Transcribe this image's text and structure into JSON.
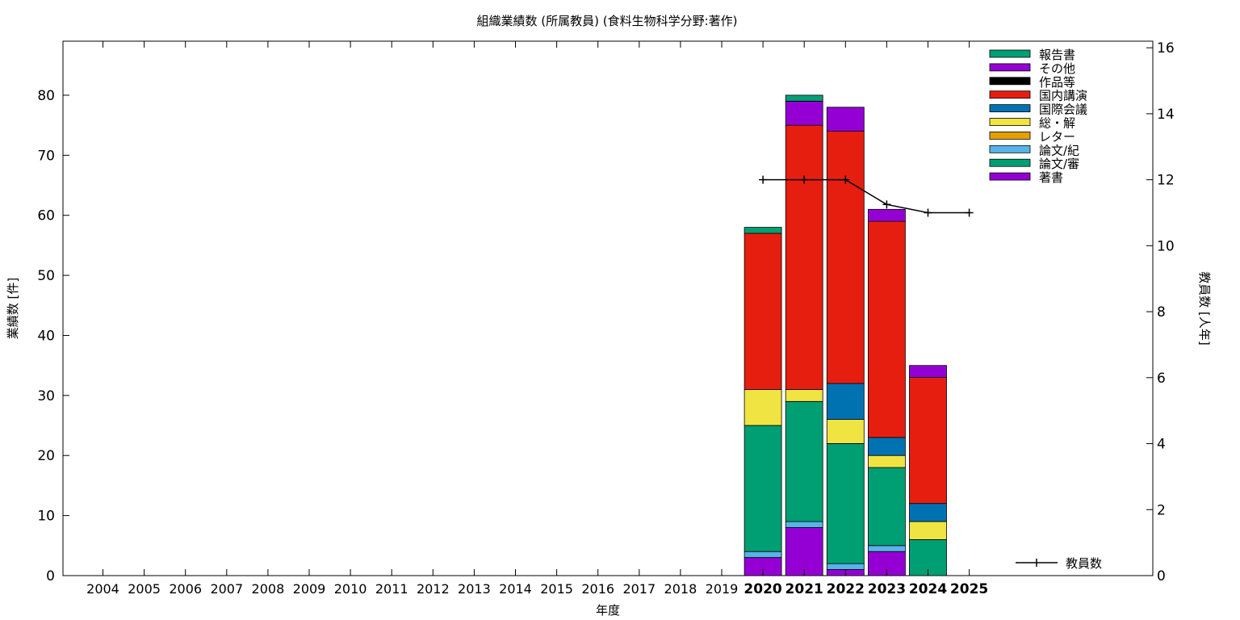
{
  "chart_data": {
    "type": "bar",
    "title": "組織業績数 (所属教員) (食料生物科学分野:著作)",
    "xlabel": "年度",
    "ylabel": "業績数 [件]",
    "y2label": "教員数 [人年]",
    "categories": [
      "2004",
      "2005",
      "2006",
      "2007",
      "2008",
      "2009",
      "2010",
      "2011",
      "2012",
      "2013",
      "2014",
      "2015",
      "2016",
      "2017",
      "2018",
      "2019",
      "2020",
      "2021",
      "2022",
      "2023",
      "2024",
      "2025"
    ],
    "bold_categories": [
      "2020",
      "2021",
      "2022",
      "2023",
      "2024",
      "2025"
    ],
    "ylim": [
      0,
      89
    ],
    "y2lim": [
      0,
      16.2
    ],
    "yticks": [
      0,
      10,
      20,
      30,
      40,
      50,
      60,
      70,
      80
    ],
    "y2ticks": [
      0,
      2,
      4,
      6,
      8,
      10,
      12,
      14,
      16
    ],
    "stack_order": [
      "著書",
      "論文/紀",
      "論文/審",
      "レター",
      "総・解",
      "国際会議",
      "国内講演",
      "作品等",
      "その他",
      "報告書"
    ],
    "series": [
      {
        "name": "報告書",
        "color": "#009e73",
        "values": [
          0,
          0,
          0,
          0,
          0,
          0,
          0,
          0,
          0,
          0,
          0,
          0,
          0,
          0,
          0,
          0,
          1,
          1,
          0,
          0,
          0,
          0
        ]
      },
      {
        "name": "その他",
        "color": "#9400d3",
        "values": [
          0,
          0,
          0,
          0,
          0,
          0,
          0,
          0,
          0,
          0,
          0,
          0,
          0,
          0,
          0,
          0,
          0,
          4,
          4,
          2,
          2,
          0
        ]
      },
      {
        "name": "作品等",
        "color": "#000000",
        "values": [
          0,
          0,
          0,
          0,
          0,
          0,
          0,
          0,
          0,
          0,
          0,
          0,
          0,
          0,
          0,
          0,
          0,
          0,
          0,
          0,
          0,
          0
        ]
      },
      {
        "name": "国内講演",
        "color": "#e51e10",
        "values": [
          0,
          0,
          0,
          0,
          0,
          0,
          0,
          0,
          0,
          0,
          0,
          0,
          0,
          0,
          0,
          0,
          26,
          44,
          42,
          36,
          21,
          0
        ]
      },
      {
        "name": "国際会議",
        "color": "#0072b2",
        "values": [
          0,
          0,
          0,
          0,
          0,
          0,
          0,
          0,
          0,
          0,
          0,
          0,
          0,
          0,
          0,
          0,
          0,
          0,
          6,
          3,
          3,
          0
        ]
      },
      {
        "name": "総・解",
        "color": "#f0e442",
        "values": [
          0,
          0,
          0,
          0,
          0,
          0,
          0,
          0,
          0,
          0,
          0,
          0,
          0,
          0,
          0,
          0,
          6,
          2,
          4,
          2,
          3,
          0
        ]
      },
      {
        "name": "レター",
        "color": "#e69f00",
        "values": [
          0,
          0,
          0,
          0,
          0,
          0,
          0,
          0,
          0,
          0,
          0,
          0,
          0,
          0,
          0,
          0,
          0,
          0,
          0,
          0,
          0,
          0
        ]
      },
      {
        "name": "論文/紀",
        "color": "#56b4e9",
        "values": [
          0,
          0,
          0,
          0,
          0,
          0,
          0,
          0,
          0,
          0,
          0,
          0,
          0,
          0,
          0,
          0,
          1,
          1,
          1,
          1,
          0,
          0
        ]
      },
      {
        "name": "論文/審",
        "color": "#009e73",
        "values": [
          0,
          0,
          0,
          0,
          0,
          0,
          0,
          0,
          0,
          0,
          0,
          0,
          0,
          0,
          0,
          0,
          21,
          20,
          20,
          13,
          6,
          0
        ]
      },
      {
        "name": "著書",
        "color": "#9400d3",
        "values": [
          0,
          0,
          0,
          0,
          0,
          0,
          0,
          0,
          0,
          0,
          0,
          0,
          0,
          0,
          0,
          0,
          3,
          8,
          1,
          4,
          0,
          0
        ]
      }
    ],
    "line": {
      "name": "教員数",
      "color": "#000000",
      "axis": "y2",
      "x": [
        "2020",
        "2021",
        "2022",
        "2023",
        "2024",
        "2025"
      ],
      "values": [
        12,
        12,
        12,
        11.25,
        11,
        11
      ]
    },
    "legend_position": "top-right"
  }
}
